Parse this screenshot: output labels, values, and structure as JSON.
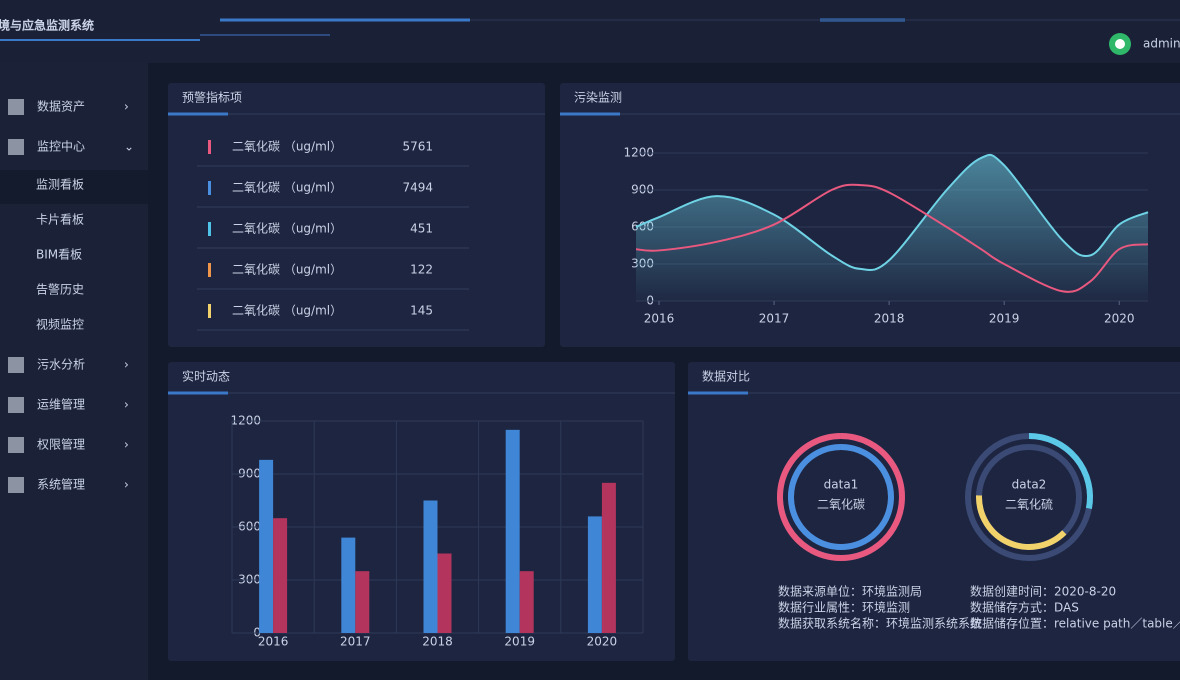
{
  "header": {
    "title": "环境与应急监测系统",
    "user": "admin"
  },
  "menu": {
    "items": [
      "数据资产",
      "监控中心",
      "污水分析",
      "运维管理",
      "权限管理",
      "系统管理"
    ],
    "expanded": 1,
    "submenu": [
      "监测看板",
      "卡片看板",
      "BIM看板",
      "告警历史",
      "视频监控"
    ],
    "active": 0
  },
  "alerts": {
    "title": "预警指标项",
    "rows": [
      {
        "label": "二氧化碳 （ug/ml）",
        "value": "5761",
        "color": "#e8587f"
      },
      {
        "label": "二氧化碳 （ug/ml）",
        "value": "7494",
        "color": "#4a8fe0"
      },
      {
        "label": "二氧化碳 （ug/ml）",
        "value": "451",
        "color": "#4fc3e8"
      },
      {
        "label": "二氧化碳 （ug/ml）",
        "value": "122",
        "color": "#f0964a"
      },
      {
        "label": "二氧化碳 （ug/ml）",
        "value": "145",
        "color": "#f2d36b"
      }
    ]
  },
  "chart_data": [
    {
      "type": "line",
      "title": "污染监测",
      "x": [
        2015.8,
        2016,
        2016.5,
        2017,
        2017.5,
        2017.75,
        2018,
        2018.5,
        2018.8,
        2019,
        2019.5,
        2019.75,
        2020,
        2020.25
      ],
      "series": [
        {
          "color": "#6fd3e6",
          "area": true,
          "values": [
            600,
            680,
            850,
            700,
            370,
            260,
            330,
            900,
            1160,
            1100,
            500,
            370,
            620,
            720
          ]
        },
        {
          "color": "#e8587f",
          "values": [
            420,
            410,
            480,
            620,
            900,
            940,
            880,
            600,
            420,
            300,
            80,
            160,
            420,
            460
          ]
        }
      ],
      "xlim": [
        2015.8,
        2020.25
      ],
      "xticks": [
        2016,
        2017,
        2018,
        2019,
        2020
      ],
      "ylim": [
        0,
        1200
      ],
      "yticks": [
        0,
        300,
        600,
        900,
        1200
      ],
      "grid": true
    },
    {
      "type": "bar",
      "title": "实时动态",
      "categories": [
        "2016",
        "2017",
        "2018",
        "2019",
        "2020"
      ],
      "series": [
        {
          "color": "#3f86d6",
          "values": [
            980,
            540,
            750,
            1150,
            660
          ]
        },
        {
          "color": "#b3355d",
          "values": [
            650,
            350,
            450,
            350,
            850
          ]
        }
      ],
      "ylim": [
        0,
        1200
      ],
      "yticks": [
        0,
        300,
        600,
        900,
        1200
      ],
      "grid": true
    }
  ],
  "compare": {
    "title": "数据对比",
    "rings": [
      {
        "name": "data1",
        "label": "二氧化碳",
        "outer": {
          "value": 100,
          "color": "#e8587f"
        },
        "inner": {
          "value": 100,
          "color": "#4a8fe0"
        }
      },
      {
        "name": "data2",
        "label": "二氧化硫",
        "outer": {
          "value": 28,
          "color": "#5cc8e8"
        },
        "inner": {
          "value": 38,
          "color": "#f2d36b"
        }
      }
    ],
    "info": [
      [
        "数据来源单位：环境监测局",
        "数据行业属性：环境监测",
        "数据获取系统名称：环境监测系统系统"
      ],
      [
        "数据创建时间：2020-8-20",
        "数据储存方式：DAS",
        "数据储存位置：relative path／table／data"
      ]
    ]
  }
}
